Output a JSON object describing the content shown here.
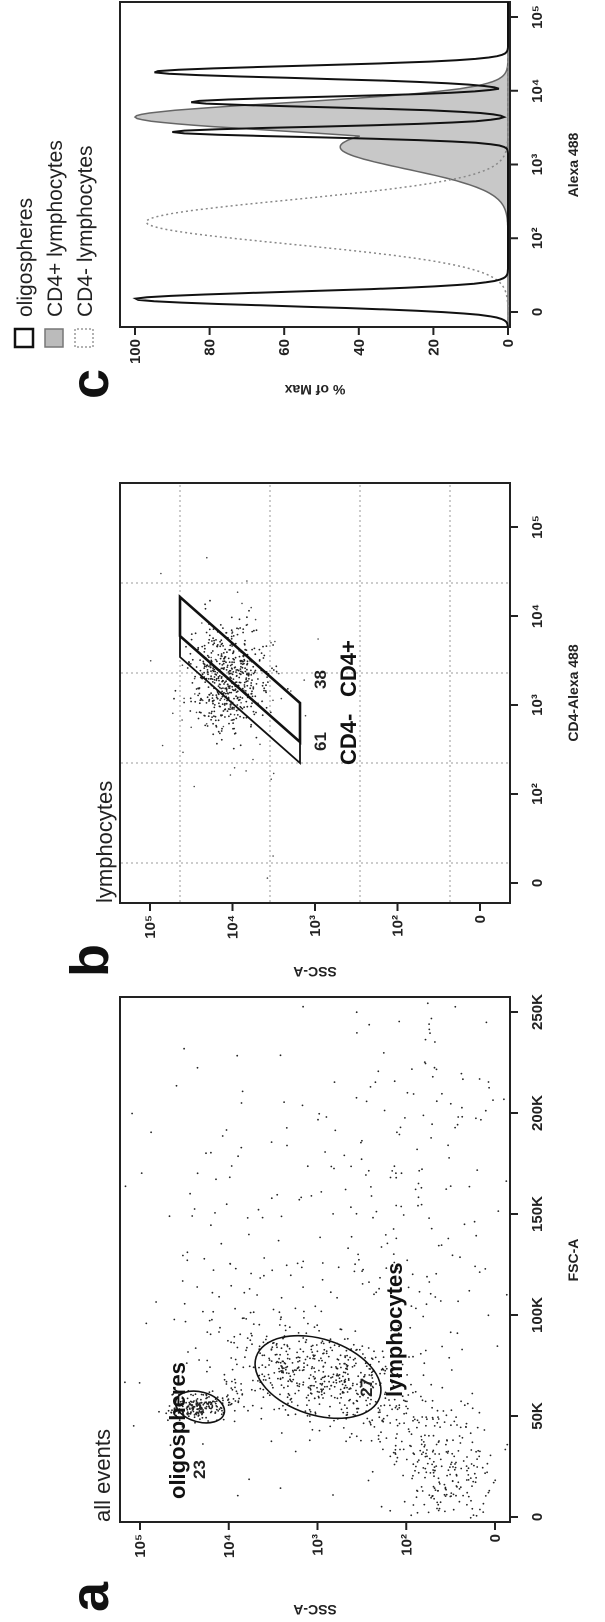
{
  "chart_data": [
    {
      "panel": "a",
      "type": "scatter",
      "title": "all events",
      "xlabel": "FSC-A",
      "ylabel": "SSC-A",
      "x_ticks": [
        "0",
        "50K",
        "100K",
        "150K",
        "200K",
        "250K"
      ],
      "y_ticks": [
        "0",
        "10²",
        "10³",
        "10⁴",
        "10⁵"
      ],
      "gates": [
        {
          "name": "oligospheres",
          "percent": "23"
        },
        {
          "name": "lymphocytes",
          "percent": "27"
        }
      ]
    },
    {
      "panel": "b",
      "type": "scatter",
      "title": "lymphocytes",
      "xlabel": "CD4-Alexa 488",
      "ylabel": "SSC-A",
      "x_ticks": [
        "0",
        "10²",
        "10³",
        "10⁴",
        "10⁵"
      ],
      "y_ticks": [
        "0",
        "10²",
        "10³",
        "10⁴",
        "10⁵"
      ],
      "gates": [
        {
          "name": "CD4-",
          "percent": "61"
        },
        {
          "name": "CD4+",
          "percent": "38"
        }
      ]
    },
    {
      "panel": "c",
      "type": "area",
      "xlabel": "Alexa 488",
      "ylabel": "% of Max",
      "x_ticks": [
        "0",
        "10²",
        "10³",
        "10⁴",
        "10⁵"
      ],
      "y_ticks": [
        "0",
        "20",
        "40",
        "60",
        "80",
        "100"
      ],
      "ylim": [
        0,
        100
      ],
      "legend": [
        "oligospheres",
        "CD4+ lymphocytes",
        "CD4- lymphocytes"
      ],
      "legend_position": "top"
    }
  ]
}
